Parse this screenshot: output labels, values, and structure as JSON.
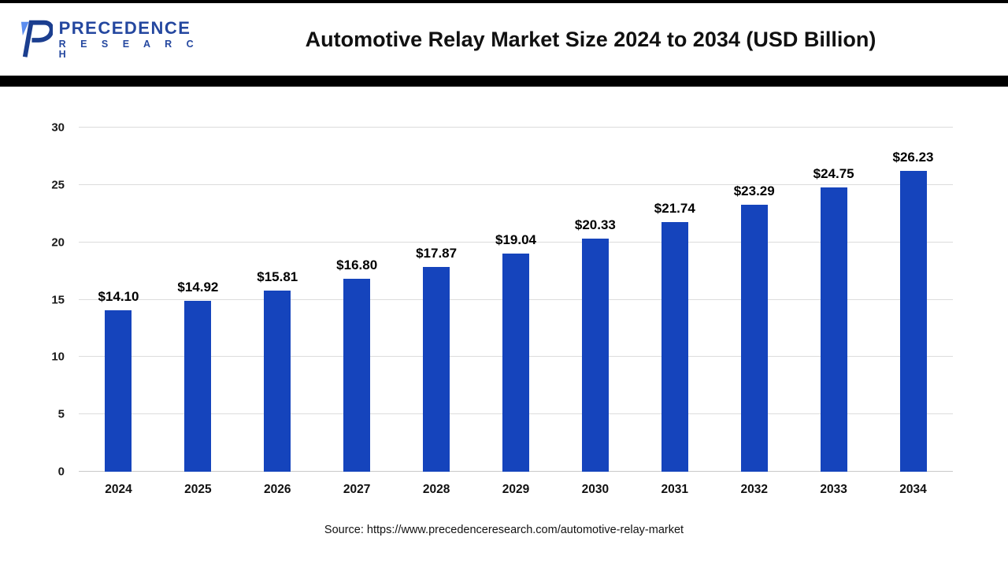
{
  "header": {
    "logo": {
      "line1": "PRECEDENCE",
      "line2": "R E S E A R C H"
    },
    "title": "Automotive Relay Market Size 2024 to 2034 (USD Billion)"
  },
  "chart_data": {
    "type": "bar",
    "title": "Automotive Relay Market Size 2024 to 2034 (USD Billion)",
    "categories": [
      "2024",
      "2025",
      "2026",
      "2027",
      "2028",
      "2029",
      "2030",
      "2031",
      "2032",
      "2033",
      "2034"
    ],
    "values": [
      14.1,
      14.92,
      15.81,
      16.8,
      17.87,
      19.04,
      20.33,
      21.74,
      23.29,
      24.75,
      26.23
    ],
    "value_labels": [
      "$14.10",
      "$14.92",
      "$15.81",
      "$16.80",
      "$17.87",
      "$19.04",
      "$20.33",
      "$21.74",
      "$23.29",
      "$24.75",
      "$26.23"
    ],
    "xlabel": "",
    "ylabel": "",
    "ylim": [
      0,
      30
    ],
    "yticks": [
      0,
      5,
      10,
      15,
      20,
      25,
      30
    ],
    "grid": true,
    "legend": "none",
    "bar_color": "#1544bc"
  },
  "footer": {
    "source": "Source: https://www.precedenceresearch.com/automotive-relay-market"
  }
}
